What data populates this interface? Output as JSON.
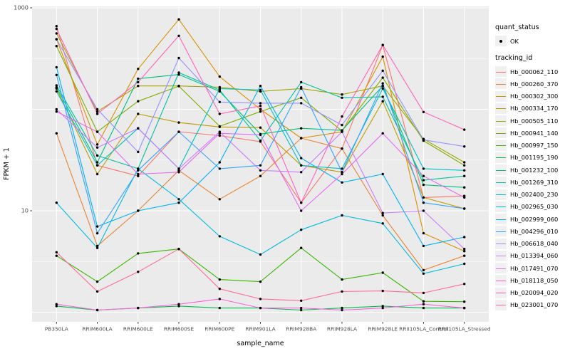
{
  "chart_data": {
    "type": "line",
    "title": "",
    "xlabel": "sample_name",
    "ylabel": "FPKM + 1",
    "y_scale": "log10",
    "ylim": [
      0.8,
      1050
    ],
    "grid": true,
    "legend_position": "right",
    "panel_bg": "#EBEBEB",
    "grid_color": "#FFFFFF",
    "tick_text_color": "#4D4D4D",
    "point_color": "#000000",
    "y_ticks": [
      {
        "value": 1000,
        "label": "1000"
      },
      {
        "value": 10,
        "label": "10"
      }
    ],
    "y_gridlines_major": [
      1000,
      100,
      10,
      1
    ],
    "y_gridlines_minor": [
      316.23,
      31.62,
      3.162
    ],
    "categories": [
      "PB350LA",
      "RRIM600LA",
      "RRIM600LE",
      "RRIM600SE",
      "RRIM600PE",
      "RRIM901LA",
      "RRIM928BA",
      "RRIM928LA",
      "RRIM928LE",
      "RRII105LA_Control",
      "RRII105LA_Stressed"
    ],
    "series": [
      {
        "name": "Hb_000062_110",
        "color": "#F8766D",
        "values": [
          660,
          28,
          22,
          60,
          55,
          48,
          12,
          41,
          430,
          13.5,
          14
        ]
      },
      {
        "name": "Hb_000260_370",
        "color": "#EA8331",
        "values": [
          58,
          4.5,
          10,
          25,
          13,
          22,
          52,
          41,
          9,
          2.6,
          3.6
        ]
      },
      {
        "name": "Hb_000302_300",
        "color": "#D89000",
        "values": [
          490,
          45,
          250,
          770,
          210,
          100,
          52,
          60,
          330,
          6,
          4
        ]
      },
      {
        "name": "Hb_000334_170",
        "color": "#C09B00",
        "values": [
          160,
          23,
          90,
          74,
          67,
          66,
          28,
          24,
          120,
          13.5,
          10.5
        ]
      },
      {
        "name": "Hb_000505_110",
        "color": "#A3A500",
        "values": [
          560,
          95,
          170,
          170,
          165,
          150,
          160,
          140,
          170,
          51,
          30
        ]
      },
      {
        "name": "Hb_000941_140",
        "color": "#7CAE00",
        "values": [
          420,
          60,
          120,
          169,
          68,
          95,
          130,
          61,
          205,
          49,
          28
        ]
      },
      {
        "name": "Hb_000997_150",
        "color": "#39B600",
        "values": [
          3.6,
          2.0,
          3.8,
          4.2,
          2.1,
          2.0,
          4.3,
          2.1,
          2.45,
          1.28,
          1.27
        ]
      },
      {
        "name": "Hb_001195_190",
        "color": "#00BB4E",
        "values": [
          1.15,
          1.05,
          1.1,
          1.15,
          1.1,
          1.1,
          1.05,
          1.1,
          1.15,
          1.1,
          1.1
        ]
      },
      {
        "name": "Hb_001232_100",
        "color": "#00BF7D",
        "values": [
          165,
          30,
          200,
          220,
          150,
          57,
          65,
          62,
          170,
          18,
          17
        ]
      },
      {
        "name": "Hb_001269_310",
        "color": "#00C1A3",
        "values": [
          172,
          35,
          26,
          230,
          155,
          49,
          185,
          130,
          133,
          20,
          22
        ]
      },
      {
        "name": "Hb_002400_230",
        "color": "#00BFC4",
        "values": [
          150,
          28,
          65,
          26,
          160,
          155,
          28,
          26,
          160,
          26,
          25
        ]
      },
      {
        "name": "Hb_002965_030",
        "color": "#00BBDA",
        "values": [
          12,
          4.3,
          26,
          13,
          5.6,
          3.7,
          6.5,
          9,
          7.5,
          2.4,
          3.0
        ]
      },
      {
        "name": "Hb_002999_060",
        "color": "#00B0F6",
        "values": [
          260,
          7,
          10,
          12,
          30,
          170,
          33,
          19,
          23,
          4.5,
          5.5
        ]
      },
      {
        "name": "Hb_004296_010",
        "color": "#35A2FF",
        "values": [
          218,
          6,
          25,
          60,
          26,
          28,
          165,
          24,
          180,
          12,
          10.5
        ]
      },
      {
        "name": "Hb_006618_040",
        "color": "#9590FF",
        "values": [
          490,
          100,
          38,
          320,
          118,
          115,
          115,
          70,
          240,
          50,
          43
        ]
      },
      {
        "name": "Hb_013394_060",
        "color": "#C77CFF",
        "values": [
          100,
          42,
          65,
          26,
          60,
          25,
          24,
          60,
          9.5,
          10,
          4.2
        ]
      },
      {
        "name": "Hb_017491_070",
        "color": "#E76BF3",
        "values": [
          95,
          60,
          23,
          24,
          58,
          56,
          10,
          23,
          58,
          22,
          13.5
        ]
      },
      {
        "name": "Hb_018118_050",
        "color": "#FA62DB",
        "values": [
          1.2,
          1.05,
          1.1,
          1.2,
          1.35,
          1.1,
          1.1,
          1.05,
          1.1,
          1.2,
          1.1
        ]
      },
      {
        "name": "Hb_020094_020",
        "color": "#FF62BC",
        "values": [
          620,
          90,
          185,
          530,
          90,
          108,
          12,
          85,
          430,
          94,
          63
        ]
      },
      {
        "name": "Hb_023001_070",
        "color": "#FF6A98",
        "values": [
          3.9,
          1.6,
          2.5,
          4.2,
          1.7,
          1.35,
          1.3,
          1.6,
          1.62,
          1.55,
          1.9
        ]
      }
    ]
  },
  "legend": {
    "quant_status_title": "quant_status",
    "quant_status_items": [
      {
        "label": "OK",
        "symbol": "point"
      }
    ],
    "tracking_id_title": "tracking_id"
  }
}
